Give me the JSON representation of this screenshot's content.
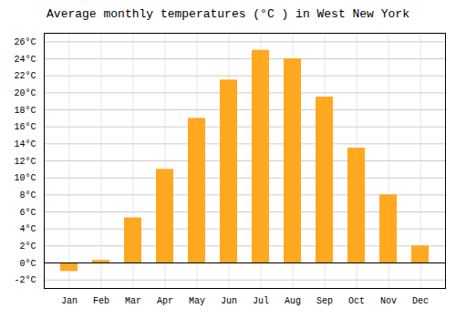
{
  "chart_data": {
    "type": "bar",
    "title": "Average monthly temperatures (°C ) in West New York",
    "categories": [
      "Jan",
      "Feb",
      "Mar",
      "Apr",
      "May",
      "Jun",
      "Jul",
      "Aug",
      "Sep",
      "Oct",
      "Nov",
      "Dec"
    ],
    "values": [
      -1.0,
      0.3,
      5.3,
      11.0,
      17.0,
      21.5,
      25.0,
      24.0,
      19.5,
      13.5,
      8.0,
      2.0
    ],
    "color": "#FFA820",
    "ylim": [
      -3,
      27
    ],
    "yticks": [
      {
        "value": -2,
        "label": "-2°C"
      },
      {
        "value": 0,
        "label": "0°C"
      },
      {
        "value": 2,
        "label": "2°C"
      },
      {
        "value": 4,
        "label": "4°C"
      },
      {
        "value": 6,
        "label": "6°C"
      },
      {
        "value": 8,
        "label": "8°C"
      },
      {
        "value": 10,
        "label": "10°C"
      },
      {
        "value": 12,
        "label": "12°C"
      },
      {
        "value": 14,
        "label": "14°C"
      },
      {
        "value": 16,
        "label": "16°C"
      },
      {
        "value": 18,
        "label": "18°C"
      },
      {
        "value": 20,
        "label": "20°C"
      },
      {
        "value": 22,
        "label": "22°C"
      },
      {
        "value": 24,
        "label": "24°C"
      },
      {
        "value": 26,
        "label": "26°C"
      }
    ],
    "grid": true
  }
}
